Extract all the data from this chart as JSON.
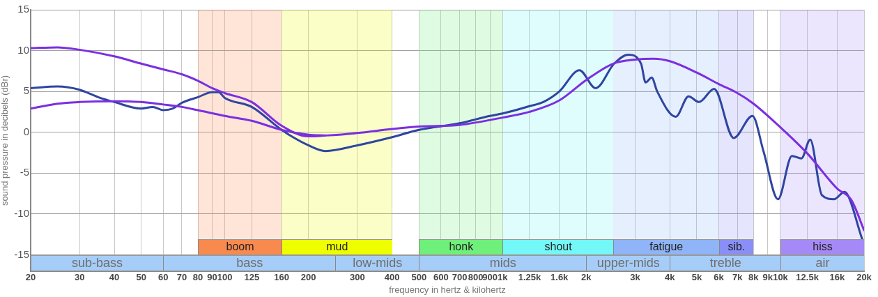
{
  "chart_data": {
    "type": "line",
    "xlabel": "frequency in hertz & kilohertz",
    "ylabel": "sound pressure in decibels (dBr)",
    "log": "x",
    "xlim": [
      20,
      20000
    ],
    "ylim": [
      -17,
      15
    ],
    "xticks": [
      20,
      30,
      40,
      50,
      60,
      70,
      80,
      90,
      100,
      125,
      160,
      200,
      300,
      400,
      500,
      600,
      700,
      800,
      900,
      {
        "value": 1000,
        "label": "1k"
      },
      {
        "value": 1250,
        "label": "1.25k"
      },
      {
        "value": 1600,
        "label": "1.6k"
      },
      {
        "value": 2000,
        "label": "2k"
      },
      {
        "value": 3000,
        "label": "3k"
      },
      {
        "value": 4000,
        "label": "4k"
      },
      {
        "value": 5000,
        "label": "5k"
      },
      {
        "value": 6000,
        "label": "6k"
      },
      {
        "value": 7000,
        "label": "7k"
      },
      {
        "value": 8000,
        "label": "8k"
      },
      {
        "value": 9000,
        "label": "9k"
      },
      {
        "value": 10000,
        "label": "10k"
      },
      {
        "value": 12500,
        "label": "12.5k"
      },
      {
        "value": 16000,
        "label": "16k"
      },
      {
        "value": 20000,
        "label": "20k"
      }
    ],
    "yticks": [
      15,
      10,
      5,
      0,
      -5,
      -10,
      -15
    ],
    "grid": true,
    "legend": false,
    "marker": "none",
    "line_style": "solid",
    "series": [
      {
        "color": "#7b2fe0",
        "x": [
          20,
          25,
          30,
          40,
          50,
          60,
          70,
          80,
          90,
          100,
          125,
          160,
          200,
          230,
          300,
          400,
          500,
          700,
          1000,
          1250,
          1600,
          2000,
          2500,
          3000,
          3500,
          4000,
          5000,
          6000,
          7000,
          8000,
          10000,
          12500,
          16000,
          18000,
          20000
        ],
        "values": [
          10.3,
          10.4,
          10.1,
          9.3,
          8.4,
          7.7,
          7.1,
          6.3,
          5.4,
          4.8,
          3.7,
          0.8,
          -0.5,
          -0.4,
          -0.1,
          0.4,
          0.7,
          0.9,
          1.8,
          2.5,
          3.9,
          6.4,
          8.4,
          8.9,
          9.0,
          8.7,
          7.3,
          5.9,
          4.8,
          3.5,
          0.6,
          -2.6,
          -6.9,
          -8.3,
          -12
        ]
      },
      {
        "color": "#7b2fe0",
        "x": [
          20,
          25,
          30,
          40,
          50,
          60,
          70,
          80,
          100,
          125,
          160,
          200,
          230
        ],
        "values": [
          2.9,
          3.5,
          3.7,
          3.8,
          3.7,
          3.4,
          3.1,
          2.7,
          2.0,
          1.4,
          0.3,
          -0.3,
          -0.4
        ]
      },
      {
        "color": "#2f45a0",
        "x": [
          20,
          25,
          30,
          35,
          40,
          50,
          55,
          60,
          65,
          70,
          80,
          90,
          95,
          100,
          125,
          160,
          180,
          200,
          230,
          300,
          400,
          500,
          700,
          900,
          1000,
          1250,
          1400,
          1600,
          1890,
          2160,
          2520,
          2830,
          3150,
          3270,
          3440,
          3600,
          4200,
          4670,
          5090,
          5770,
          6790,
          7930,
          8700,
          9800,
          11000,
          11900,
          12800,
          14100,
          15600,
          17000,
          19700
        ],
        "values": [
          5.4,
          5.6,
          5.2,
          4.3,
          3.7,
          2.9,
          3.1,
          2.7,
          2.9,
          3.6,
          4.3,
          4.9,
          4.9,
          4.2,
          3.1,
          0.3,
          -0.8,
          -1.6,
          -2.3,
          -1.6,
          -0.6,
          0.3,
          1.1,
          2.0,
          2.3,
          3.2,
          3.7,
          5.0,
          7.6,
          5.4,
          8.4,
          9.5,
          8.4,
          6.1,
          6.7,
          5.0,
          1.9,
          4.4,
          3.7,
          5.3,
          -0.7,
          2.0,
          -2.4,
          -8.2,
          -2.9,
          -3.2,
          -0.9,
          -7.7,
          -8.2,
          -7.3,
          -13.1
        ]
      }
    ],
    "bands": [
      {
        "axis": "x",
        "from": 20,
        "to": 60,
        "label": "sub-bass",
        "color": "#a6cdf7"
      },
      {
        "axis": "x",
        "from": 60,
        "to": 250,
        "label": "bass",
        "color": "#a6cdf7"
      },
      {
        "axis": "x",
        "from": 250,
        "to": 500,
        "label": "low-mids",
        "color": "#a6cdf7"
      },
      {
        "axis": "x",
        "from": 500,
        "to": 2000,
        "label": "mids",
        "color": "#a6cdf7"
      },
      {
        "axis": "x",
        "from": 2000,
        "to": 4000,
        "label": "upper-mids",
        "color": "#a6cdf7"
      },
      {
        "axis": "x",
        "from": 4000,
        "to": 10000,
        "label": "treble",
        "color": "#a6cdf7"
      },
      {
        "axis": "x",
        "from": 10000,
        "to": 20000,
        "label": "air",
        "color": "#a6cdf7"
      },
      {
        "axis": "x",
        "from": 80,
        "to": 160,
        "label": "boom",
        "color": "#f98a4f"
      },
      {
        "axis": "x",
        "from": 160,
        "to": 400,
        "label": "mud",
        "color": "#eeff00"
      },
      {
        "axis": "x",
        "from": 500,
        "to": 1000,
        "label": "honk",
        "color": "#6ef07a"
      },
      {
        "axis": "x",
        "from": 1000,
        "to": 2500,
        "label": "shout",
        "color": "#73f7f7"
      },
      {
        "axis": "x",
        "from": 2500,
        "to": 6000,
        "label": "fatigue",
        "color": "#8fb4f7"
      },
      {
        "axis": "x",
        "from": 6000,
        "to": 8000,
        "label": "sib.",
        "color": "#8a8ff7"
      },
      {
        "axis": "x",
        "from": 10000,
        "to": 20000,
        "label": "hiss",
        "color": "#a58af7"
      }
    ]
  }
}
